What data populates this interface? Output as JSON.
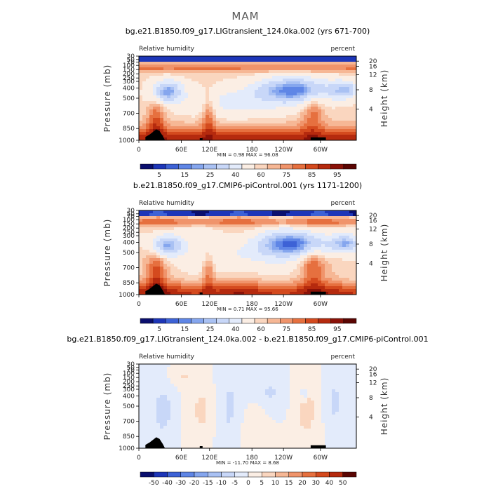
{
  "figure_title": "MAM",
  "chart_data": [
    {
      "type": "heatmap",
      "title": "bg.e21.B1850.f09_g17.LIGtransient_124.0ka.002 (yrs 671-700)",
      "left_label": "Relative humidity",
      "right_label": "percent",
      "ylabel": "Pressure (mb)",
      "y2label": "Height (km)",
      "x_ticks": [
        "0",
        "60E",
        "120E",
        "180",
        "120W",
        "60W"
      ],
      "y_ticks": [
        "30",
        "50",
        "70",
        "100",
        "150",
        "200",
        "250",
        "300",
        "400",
        "500",
        "700",
        "850",
        "1000"
      ],
      "y2_ticks": [
        "20",
        "16",
        "12",
        "8",
        "4"
      ],
      "stats": "MIN =    0.98  MAX =  96.08",
      "colorbar": {
        "labels": [
          "5",
          "15",
          "25",
          "40",
          "60",
          "75",
          "85",
          "95"
        ],
        "colors": [
          "#0a0f6e",
          "#1d36b8",
          "#3d62d6",
          "#5f86e6",
          "#85a6ee",
          "#a9c1f3",
          "#c8d7f8",
          "#e3ebfb",
          "#fbeee4",
          "#fad6bf",
          "#f6b795",
          "#f0946b",
          "#e6703f",
          "#d44a1e",
          "#b52a0e",
          "#8a1208",
          "#5a0502"
        ]
      },
      "range": {
        "min": 0.98,
        "max": 96.08
      }
    },
    {
      "type": "heatmap",
      "title": "b.e21.B1850.f09_g17.CMIP6-piControl.001 (yrs 1171-1200)",
      "left_label": "Relative humidity",
      "right_label": "percent",
      "ylabel": "Pressure (mb)",
      "y2label": "Height (km)",
      "x_ticks": [
        "0",
        "60E",
        "120E",
        "180",
        "120W",
        "60W"
      ],
      "y_ticks": [
        "30",
        "50",
        "70",
        "100",
        "150",
        "200",
        "250",
        "300",
        "400",
        "500",
        "700",
        "850",
        "1000"
      ],
      "y2_ticks": [
        "20",
        "16",
        "12",
        "8",
        "4"
      ],
      "stats": "MIN =    0.71  MAX =  95.66",
      "colorbar": {
        "labels": [
          "5",
          "15",
          "25",
          "40",
          "60",
          "75",
          "85",
          "95"
        ],
        "colors": [
          "#0a0f6e",
          "#1d36b8",
          "#3d62d6",
          "#5f86e6",
          "#85a6ee",
          "#a9c1f3",
          "#c8d7f8",
          "#e3ebfb",
          "#fbeee4",
          "#fad6bf",
          "#f6b795",
          "#f0946b",
          "#e6703f",
          "#d44a1e",
          "#b52a0e",
          "#8a1208",
          "#5a0502"
        ]
      },
      "range": {
        "min": 0.71,
        "max": 95.66
      }
    },
    {
      "type": "heatmap",
      "title": "bg.e21.B1850.f09_g17.LIGtransient_124.0ka.002 - b.e21.B1850.f09_g17.CMIP6-piControl.001",
      "left_label": "Relative humidity",
      "right_label": "percent",
      "ylabel": "Pressure (mb)",
      "y2label": "Height (km)",
      "x_ticks": [
        "0",
        "60E",
        "120E",
        "180",
        "120W",
        "60W"
      ],
      "y_ticks": [
        "30",
        "50",
        "70",
        "100",
        "150",
        "200",
        "250",
        "300",
        "400",
        "500",
        "700",
        "850",
        "1000"
      ],
      "y2_ticks": [
        "20",
        "16",
        "12",
        "8",
        "4"
      ],
      "stats": "MIN =  -11.70  MAX =    8.68",
      "colorbar": {
        "labels": [
          "-50",
          "-40",
          "-30",
          "-20",
          "-15",
          "-10",
          "-5",
          "0",
          "5",
          "10",
          "15",
          "20",
          "30",
          "40",
          "50"
        ],
        "colors": [
          "#0a0f6e",
          "#1d36b8",
          "#3d62d6",
          "#5f86e6",
          "#85a6ee",
          "#a9c1f3",
          "#c8d7f8",
          "#e3ebfb",
          "#fbeee4",
          "#fad6bf",
          "#f6b795",
          "#f0946b",
          "#e6703f",
          "#d44a1e",
          "#b52a0e",
          "#5a0502"
        ]
      },
      "range": {
        "min": -11.7,
        "max": 8.68
      }
    }
  ]
}
